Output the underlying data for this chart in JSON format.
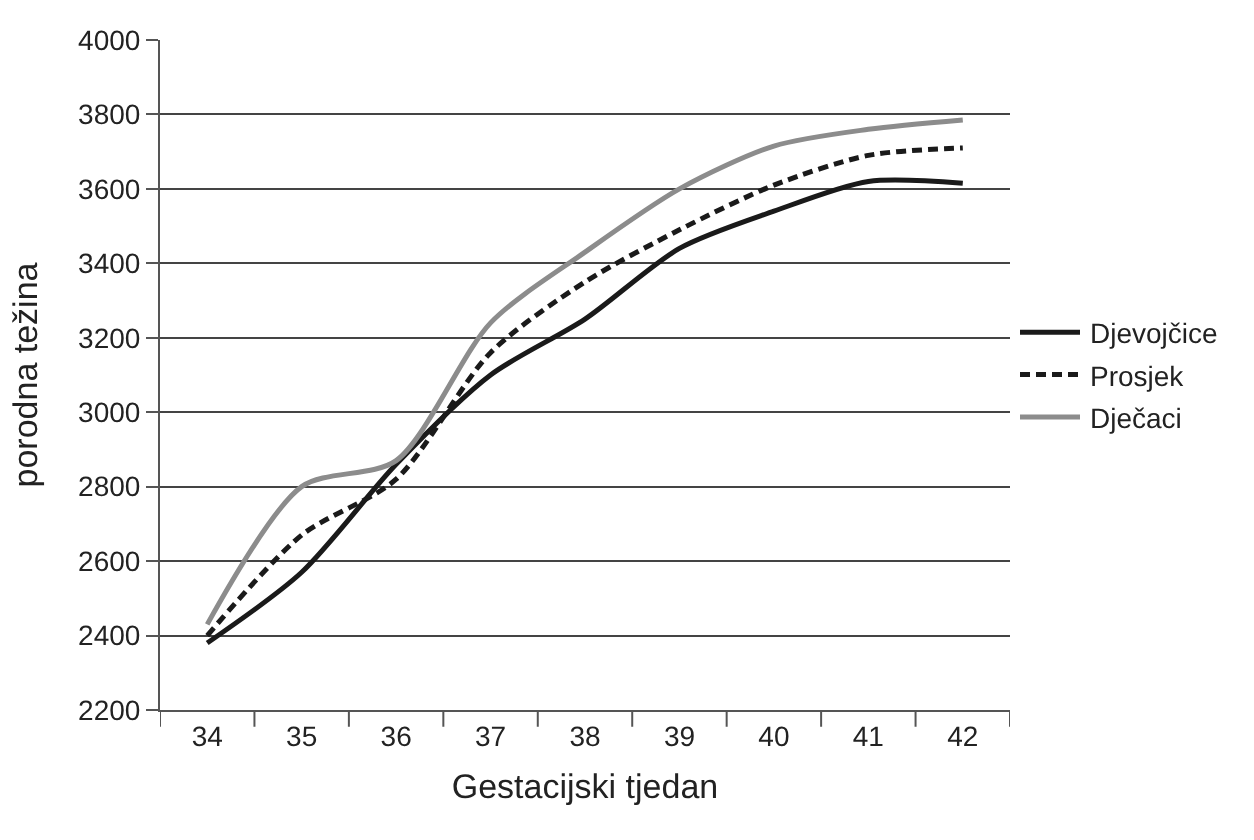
{
  "chart_data": {
    "type": "line",
    "xlabel": "Gestacijski tjedan",
    "ylabel": "porodna težina",
    "categories": [
      "34",
      "35",
      "36",
      "37",
      "38",
      "39",
      "40",
      "41",
      "42"
    ],
    "series": [
      {
        "name": "Djevojčice",
        "color": "#1a1a1a",
        "line_style": "solid",
        "values": [
          2380,
          2570,
          2860,
          3100,
          3250,
          3440,
          3540,
          3620,
          3615
        ]
      },
      {
        "name": "Prosjek",
        "color": "#1a1a1a",
        "line_style": "dashed",
        "values": [
          2400,
          2670,
          2820,
          3160,
          3350,
          3490,
          3610,
          3690,
          3710
        ]
      },
      {
        "name": "Dječaci",
        "color": "#8c8c8c",
        "line_style": "solid",
        "values": [
          2430,
          2800,
          2870,
          3240,
          3430,
          3600,
          3715,
          3760,
          3785
        ]
      }
    ],
    "ylim": [
      2200,
      4000
    ],
    "yticks": [
      2200,
      2400,
      2600,
      2800,
      3000,
      3200,
      3400,
      3600,
      3800,
      4000
    ],
    "grid": "y",
    "legend": "right",
    "marker": "none"
  }
}
